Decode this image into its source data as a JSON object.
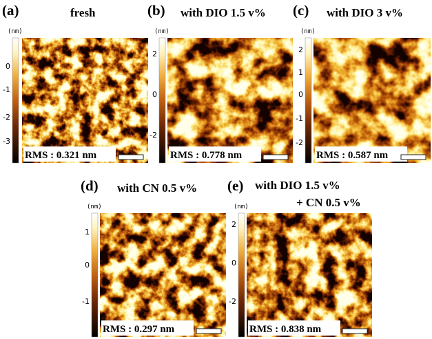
{
  "panels": [
    {
      "label": "(a)",
      "title": [
        "fresh"
      ],
      "unit": "(nm)",
      "ticks": [
        "0",
        "-1",
        "-2",
        "-3"
      ],
      "rms": "RMS : 0.321 nm"
    },
    {
      "label": "(b)",
      "title": [
        "with DIO 1.5 v%"
      ],
      "unit": "(nm)",
      "ticks": [
        "2",
        "0",
        "-2"
      ],
      "rms": "RMS : 0.778 nm"
    },
    {
      "label": "(c)",
      "title": [
        "with DIO 3 v%"
      ],
      "unit": "(nm)",
      "ticks": [
        "2",
        "1",
        "0",
        "-1",
        "-2"
      ],
      "rms": "RMS : 0.587 nm"
    },
    {
      "label": "(d)",
      "title": [
        "with CN 0.5 v%"
      ],
      "unit": "(nm)",
      "ticks": [
        "1",
        "0",
        "-1"
      ],
      "rms": "RMS : 0.297 nm"
    },
    {
      "label": "(e)",
      "title": [
        "with DIO 1.5 v%",
        "+ CN 0.5 v%"
      ],
      "unit": "(nm)",
      "ticks": [
        "2",
        "0",
        "-2"
      ],
      "rms": "RMS : 0.838 nm"
    }
  ]
}
